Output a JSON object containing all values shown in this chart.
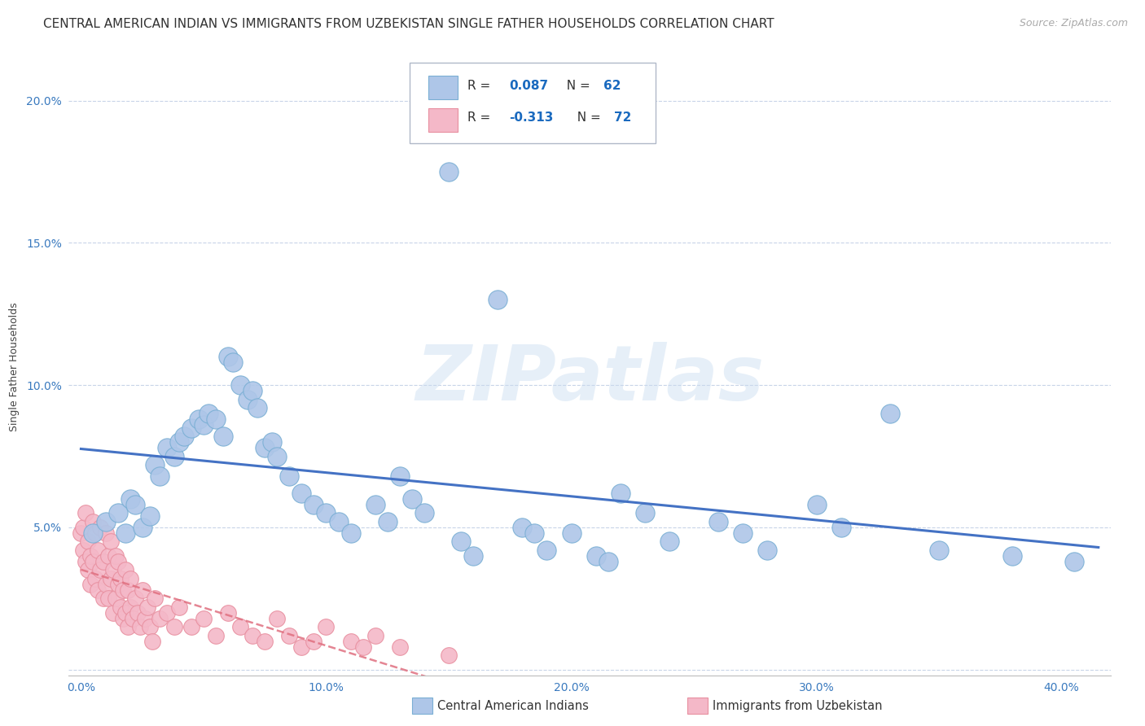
{
  "title": "CENTRAL AMERICAN INDIAN VS IMMIGRANTS FROM UZBEKISTAN SINGLE FATHER HOUSEHOLDS CORRELATION CHART",
  "source": "Source: ZipAtlas.com",
  "ylabel": "Single Father Households",
  "watermark": "ZIPatlas",
  "series1_label": "Central American Indians",
  "series1_R": "0.087",
  "series1_N": "62",
  "series1_color": "#aec6e8",
  "series1_edge": "#7aafd4",
  "series1_line_color": "#4472c4",
  "series2_label": "Immigrants from Uzbekistan",
  "series2_R": "-0.313",
  "series2_N": "72",
  "series2_color": "#f4b8c8",
  "series2_edge": "#e890a0",
  "series2_line_color": "#e07080",
  "xlim": [
    -0.005,
    0.42
  ],
  "ylim": [
    -0.002,
    0.215
  ],
  "xticks": [
    0.0,
    0.1,
    0.2,
    0.3,
    0.4
  ],
  "xtick_labels": [
    "0.0%",
    "10.0%",
    "20.0%",
    "30.0%",
    "40.0%"
  ],
  "yticks": [
    0.0,
    0.05,
    0.1,
    0.15,
    0.2
  ],
  "ytick_labels": [
    "",
    "5.0%",
    "10.0%",
    "15.0%",
    "20.0%"
  ],
  "background_color": "#ffffff",
  "grid_color": "#c8d4e8",
  "title_fontsize": 11,
  "axis_label_fontsize": 9,
  "tick_fontsize": 10,
  "series1_x": [
    0.005,
    0.01,
    0.015,
    0.018,
    0.02,
    0.022,
    0.025,
    0.028,
    0.03,
    0.032,
    0.035,
    0.038,
    0.04,
    0.042,
    0.045,
    0.048,
    0.05,
    0.052,
    0.055,
    0.058,
    0.06,
    0.062,
    0.065,
    0.068,
    0.07,
    0.072,
    0.075,
    0.078,
    0.08,
    0.085,
    0.09,
    0.095,
    0.1,
    0.105,
    0.11,
    0.12,
    0.125,
    0.13,
    0.135,
    0.14,
    0.15,
    0.155,
    0.16,
    0.17,
    0.18,
    0.185,
    0.19,
    0.2,
    0.21,
    0.215,
    0.22,
    0.23,
    0.24,
    0.26,
    0.27,
    0.28,
    0.3,
    0.31,
    0.33,
    0.35,
    0.38,
    0.405
  ],
  "series1_y": [
    0.048,
    0.052,
    0.055,
    0.048,
    0.06,
    0.058,
    0.05,
    0.054,
    0.072,
    0.068,
    0.078,
    0.075,
    0.08,
    0.082,
    0.085,
    0.088,
    0.086,
    0.09,
    0.088,
    0.082,
    0.11,
    0.108,
    0.1,
    0.095,
    0.098,
    0.092,
    0.078,
    0.08,
    0.075,
    0.068,
    0.062,
    0.058,
    0.055,
    0.052,
    0.048,
    0.058,
    0.052,
    0.068,
    0.06,
    0.055,
    0.175,
    0.045,
    0.04,
    0.13,
    0.05,
    0.048,
    0.042,
    0.048,
    0.04,
    0.038,
    0.062,
    0.055,
    0.045,
    0.052,
    0.048,
    0.042,
    0.058,
    0.05,
    0.09,
    0.042,
    0.04,
    0.038
  ],
  "series2_x": [
    0.0,
    0.001,
    0.001,
    0.002,
    0.002,
    0.003,
    0.003,
    0.004,
    0.004,
    0.005,
    0.005,
    0.006,
    0.006,
    0.007,
    0.007,
    0.008,
    0.008,
    0.009,
    0.009,
    0.01,
    0.01,
    0.011,
    0.011,
    0.012,
    0.012,
    0.013,
    0.013,
    0.014,
    0.014,
    0.015,
    0.015,
    0.016,
    0.016,
    0.017,
    0.017,
    0.018,
    0.018,
    0.019,
    0.019,
    0.02,
    0.02,
    0.021,
    0.022,
    0.023,
    0.024,
    0.025,
    0.026,
    0.027,
    0.028,
    0.029,
    0.03,
    0.032,
    0.035,
    0.038,
    0.04,
    0.045,
    0.05,
    0.055,
    0.06,
    0.065,
    0.07,
    0.075,
    0.08,
    0.085,
    0.09,
    0.095,
    0.1,
    0.11,
    0.115,
    0.12,
    0.13,
    0.15
  ],
  "series2_y": [
    0.048,
    0.05,
    0.042,
    0.038,
    0.055,
    0.045,
    0.035,
    0.04,
    0.03,
    0.052,
    0.038,
    0.032,
    0.048,
    0.028,
    0.042,
    0.035,
    0.05,
    0.025,
    0.038,
    0.048,
    0.03,
    0.04,
    0.025,
    0.032,
    0.045,
    0.02,
    0.035,
    0.025,
    0.04,
    0.03,
    0.038,
    0.022,
    0.032,
    0.018,
    0.028,
    0.035,
    0.02,
    0.028,
    0.015,
    0.032,
    0.022,
    0.018,
    0.025,
    0.02,
    0.015,
    0.028,
    0.018,
    0.022,
    0.015,
    0.01,
    0.025,
    0.018,
    0.02,
    0.015,
    0.022,
    0.015,
    0.018,
    0.012,
    0.02,
    0.015,
    0.012,
    0.01,
    0.018,
    0.012,
    0.008,
    0.01,
    0.015,
    0.01,
    0.008,
    0.012,
    0.008,
    0.005
  ]
}
